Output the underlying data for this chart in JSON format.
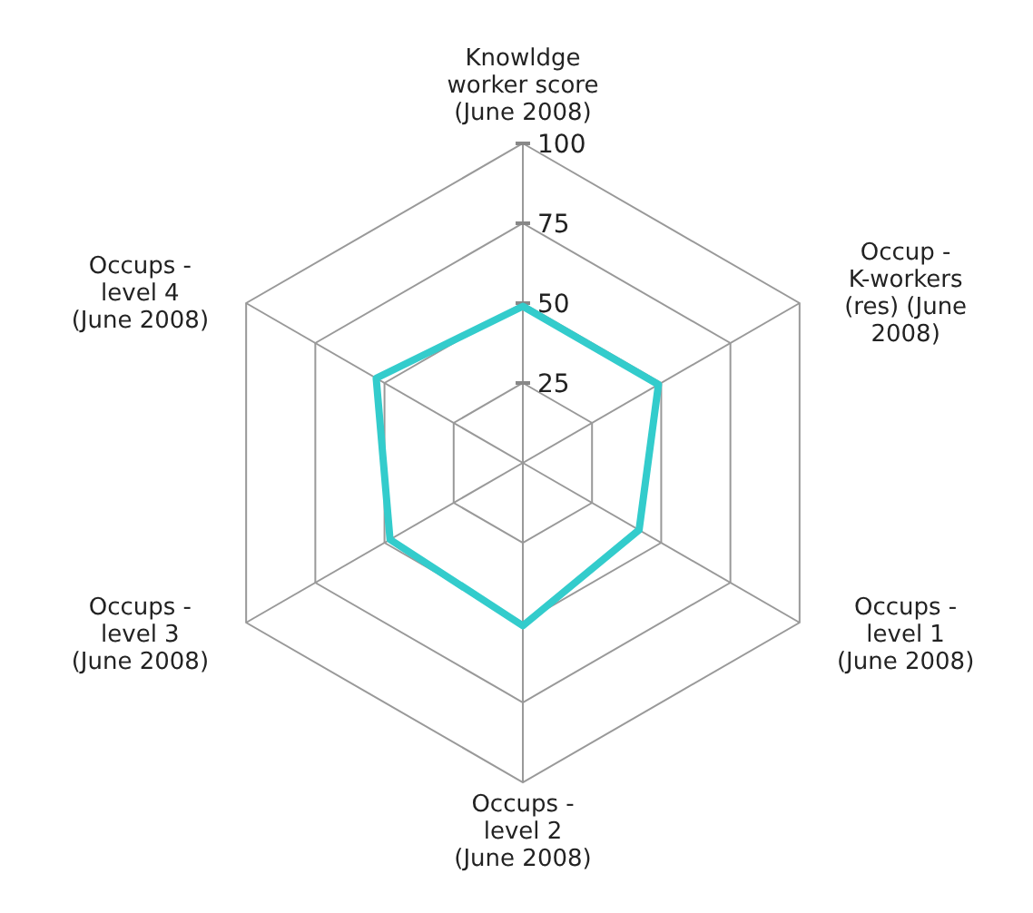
{
  "chart_data": {
    "type": "radar",
    "categories": [
      "Knowldge worker score (June 2008)",
      "Occup - K-workers (res) (June 2008)",
      "Occups - level 1 (June 2008)",
      "Occups - level 2 (June 2008)",
      "Occups - level 3 (June 2008)",
      "Occups - level 4 (June 2008)"
    ],
    "series": [
      {
        "color": "#33cccc",
        "values": [
          49,
          49,
          42,
          51,
          48,
          53
        ]
      }
    ],
    "ylim": [
      0,
      100
    ],
    "yticks": [
      25,
      50,
      75,
      100
    ],
    "grid": true,
    "marker": "none"
  }
}
